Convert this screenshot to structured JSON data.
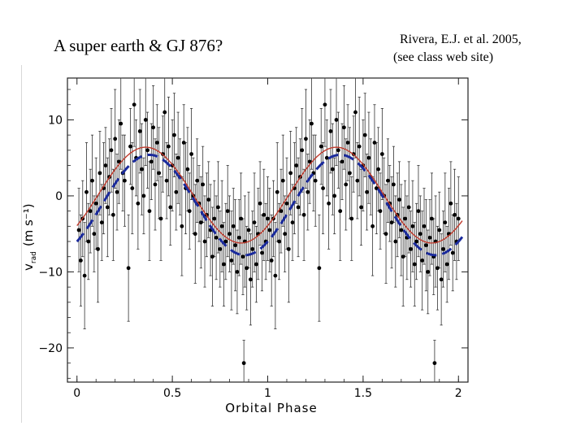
{
  "slide": {
    "title": "A super earth & GJ 876?",
    "citation_line1": "Rivera, E.J. et al. 2005,",
    "citation_line2": "(see class web site)"
  },
  "chart_data": {
    "type": "scatter",
    "xlabel": "Orbital Phase",
    "ylabel_main": "v",
    "ylabel_sub": "rad",
    "ylabel_unit": "(m s⁻¹)",
    "xlim": [
      -0.05,
      2.05
    ],
    "ylim": [
      -24.5,
      15.5
    ],
    "x_ticks": [
      0,
      0.5,
      1,
      1.5,
      2
    ],
    "x_tick_labels": [
      "0",
      "0.5",
      "1",
      "1.5",
      "2"
    ],
    "y_ticks": [
      -20,
      -10,
      0,
      10
    ],
    "y_tick_labels": [
      "−20",
      "−10",
      "0",
      "10"
    ],
    "grid": false,
    "curves": [
      {
        "style": "dashed",
        "color": "#1a2a9c",
        "amplitude": 6.6,
        "offset": -1.2,
        "phase_of_max": 0.38
      },
      {
        "style": "solid",
        "color": "#c0392b",
        "amplitude": 6.3,
        "offset": 0.1,
        "phase_of_max": 0.36
      }
    ],
    "points": [
      {
        "x": 0.01,
        "y": -4.5,
        "e": 5.5
      },
      {
        "x": 0.02,
        "y": -8.5,
        "e": 6
      },
      {
        "x": 0.03,
        "y": -3,
        "e": 5
      },
      {
        "x": 0.04,
        "y": -10.5,
        "e": 7
      },
      {
        "x": 0.05,
        "y": 0.5,
        "e": 6.5
      },
      {
        "x": 0.06,
        "y": -6,
        "e": 5
      },
      {
        "x": 0.07,
        "y": -2,
        "e": 5.5
      },
      {
        "x": 0.08,
        "y": 2,
        "e": 6
      },
      {
        "x": 0.09,
        "y": -5,
        "e": 5
      },
      {
        "x": 0.1,
        "y": -1,
        "e": 6
      },
      {
        "x": 0.11,
        "y": -7,
        "e": 7
      },
      {
        "x": 0.12,
        "y": 3,
        "e": 5.5
      },
      {
        "x": 0.13,
        "y": -3.5,
        "e": 5
      },
      {
        "x": 0.14,
        "y": 1,
        "e": 6
      },
      {
        "x": 0.15,
        "y": 4,
        "e": 5
      },
      {
        "x": 0.16,
        "y": -1.5,
        "e": 6.5
      },
      {
        "x": 0.17,
        "y": 2.5,
        "e": 5
      },
      {
        "x": 0.18,
        "y": 6,
        "e": 5.5
      },
      {
        "x": 0.19,
        "y": -2.5,
        "e": 6
      },
      {
        "x": 0.2,
        "y": 7.5,
        "e": 6.5
      },
      {
        "x": 0.21,
        "y": 0.5,
        "e": 5
      },
      {
        "x": 0.22,
        "y": 4.5,
        "e": 5.5
      },
      {
        "x": 0.23,
        "y": 9.5,
        "e": 6
      },
      {
        "x": 0.24,
        "y": 3,
        "e": 5
      },
      {
        "x": 0.25,
        "y": 2,
        "e": 6
      },
      {
        "x": 0.27,
        "y": -9.5,
        "e": 7
      },
      {
        "x": 0.28,
        "y": 6.5,
        "e": 5
      },
      {
        "x": 0.29,
        "y": 1,
        "e": 6
      },
      {
        "x": 0.3,
        "y": 12,
        "e": 5.5
      },
      {
        "x": 0.31,
        "y": 5,
        "e": 5
      },
      {
        "x": 0.32,
        "y": -1,
        "e": 6
      },
      {
        "x": 0.33,
        "y": 8.5,
        "e": 5.5
      },
      {
        "x": 0.34,
        "y": 3.5,
        "e": 6
      },
      {
        "x": 0.35,
        "y": 0,
        "e": 5
      },
      {
        "x": 0.36,
        "y": 10,
        "e": 6
      },
      {
        "x": 0.37,
        "y": 6,
        "e": 5
      },
      {
        "x": 0.38,
        "y": -2,
        "e": 6.5
      },
      {
        "x": 0.39,
        "y": 4.5,
        "e": 5
      },
      {
        "x": 0.4,
        "y": 9,
        "e": 5.5
      },
      {
        "x": 0.41,
        "y": 1.5,
        "e": 6
      },
      {
        "x": 0.42,
        "y": 7,
        "e": 5
      },
      {
        "x": 0.43,
        "y": 3,
        "e": 6
      },
      {
        "x": 0.44,
        "y": -3,
        "e": 5.5
      },
      {
        "x": 0.45,
        "y": 5.5,
        "e": 5
      },
      {
        "x": 0.46,
        "y": 11,
        "e": 6
      },
      {
        "x": 0.47,
        "y": 2,
        "e": 5
      },
      {
        "x": 0.48,
        "y": 6.5,
        "e": 6.5
      },
      {
        "x": 0.49,
        "y": -1.5,
        "e": 5
      },
      {
        "x": 0.5,
        "y": 4,
        "e": 6
      },
      {
        "x": 0.51,
        "y": 8,
        "e": 5.5
      },
      {
        "x": 0.52,
        "y": 0.5,
        "e": 5
      },
      {
        "x": 0.53,
        "y": 5,
        "e": 6
      },
      {
        "x": 0.54,
        "y": 2.5,
        "e": 5
      },
      {
        "x": 0.55,
        "y": -4,
        "e": 6.5
      },
      {
        "x": 0.56,
        "y": 7,
        "e": 5
      },
      {
        "x": 0.57,
        "y": 1,
        "e": 6
      },
      {
        "x": 0.58,
        "y": 3.5,
        "e": 5.5
      },
      {
        "x": 0.59,
        "y": -2,
        "e": 5
      },
      {
        "x": 0.6,
        "y": 5.5,
        "e": 6
      },
      {
        "x": 0.61,
        "y": 0,
        "e": 5
      },
      {
        "x": 0.62,
        "y": -5,
        "e": 6.5
      },
      {
        "x": 0.63,
        "y": 2,
        "e": 5.5
      },
      {
        "x": 0.64,
        "y": -1,
        "e": 5
      },
      {
        "x": 0.65,
        "y": -3.5,
        "e": 6
      },
      {
        "x": 0.66,
        "y": 1.5,
        "e": 5
      },
      {
        "x": 0.67,
        "y": -6,
        "e": 6
      },
      {
        "x": 0.68,
        "y": -2.5,
        "e": 5.5
      },
      {
        "x": 0.69,
        "y": -0.5,
        "e": 5
      },
      {
        "x": 0.7,
        "y": -4.5,
        "e": 6
      },
      {
        "x": 0.71,
        "y": -8,
        "e": 6.5
      },
      {
        "x": 0.72,
        "y": -3,
        "e": 5
      },
      {
        "x": 0.73,
        "y": -5.5,
        "e": 5.5
      },
      {
        "x": 0.74,
        "y": -1.5,
        "e": 6
      },
      {
        "x": 0.75,
        "y": -7,
        "e": 5
      },
      {
        "x": 0.76,
        "y": -4,
        "e": 6
      },
      {
        "x": 0.77,
        "y": -9,
        "e": 5.5
      },
      {
        "x": 0.78,
        "y": -6,
        "e": 5
      },
      {
        "x": 0.79,
        "y": -2,
        "e": 6
      },
      {
        "x": 0.8,
        "y": -5,
        "e": 5
      },
      {
        "x": 0.81,
        "y": -8.5,
        "e": 6.5
      },
      {
        "x": 0.82,
        "y": -4,
        "e": 5
      },
      {
        "x": 0.83,
        "y": -6.5,
        "e": 6
      },
      {
        "x": 0.84,
        "y": -10,
        "e": 5.5
      },
      {
        "x": 0.85,
        "y": -5.5,
        "e": 5
      },
      {
        "x": 0.86,
        "y": -3,
        "e": 6
      },
      {
        "x": 0.87,
        "y": -8,
        "e": 5
      },
      {
        "x": 0.875,
        "y": -22,
        "e": 3
      },
      {
        "x": 0.88,
        "y": -6,
        "e": 6
      },
      {
        "x": 0.89,
        "y": -9.5,
        "e": 5.5
      },
      {
        "x": 0.9,
        "y": -4.5,
        "e": 5
      },
      {
        "x": 0.91,
        "y": -11,
        "e": 6
      },
      {
        "x": 0.92,
        "y": -7,
        "e": 5
      },
      {
        "x": 0.93,
        "y": -3.5,
        "e": 6.5
      },
      {
        "x": 0.94,
        "y": -9,
        "e": 5
      },
      {
        "x": 0.95,
        "y": -5,
        "e": 6
      },
      {
        "x": 0.96,
        "y": -1,
        "e": 5.5
      },
      {
        "x": 0.97,
        "y": -7.5,
        "e": 5
      },
      {
        "x": 0.98,
        "y": -2.5,
        "e": 6
      },
      {
        "x": 0.99,
        "y": -6,
        "e": 5
      },
      {
        "x": 1.0,
        "y": -3,
        "e": 5.5
      },
      {
        "x": 1.01,
        "y": -4.5,
        "e": 5.5
      },
      {
        "x": 1.02,
        "y": -8.5,
        "e": 6
      },
      {
        "x": 1.03,
        "y": -3,
        "e": 5
      },
      {
        "x": 1.04,
        "y": -10.5,
        "e": 7
      },
      {
        "x": 1.05,
        "y": 0.5,
        "e": 6.5
      },
      {
        "x": 1.06,
        "y": -6,
        "e": 5
      },
      {
        "x": 1.07,
        "y": -2,
        "e": 5.5
      },
      {
        "x": 1.08,
        "y": 2,
        "e": 6
      },
      {
        "x": 1.09,
        "y": -5,
        "e": 5
      },
      {
        "x": 1.1,
        "y": -1,
        "e": 6
      },
      {
        "x": 1.11,
        "y": -7,
        "e": 7
      },
      {
        "x": 1.12,
        "y": 3,
        "e": 5.5
      },
      {
        "x": 1.13,
        "y": -3.5,
        "e": 5
      },
      {
        "x": 1.14,
        "y": 1,
        "e": 6
      },
      {
        "x": 1.15,
        "y": 4,
        "e": 5
      },
      {
        "x": 1.16,
        "y": -1.5,
        "e": 6.5
      },
      {
        "x": 1.17,
        "y": 2.5,
        "e": 5
      },
      {
        "x": 1.18,
        "y": 6,
        "e": 5.5
      },
      {
        "x": 1.19,
        "y": -2.5,
        "e": 6
      },
      {
        "x": 1.2,
        "y": 7.5,
        "e": 6.5
      },
      {
        "x": 1.21,
        "y": 0.5,
        "e": 5
      },
      {
        "x": 1.22,
        "y": 4.5,
        "e": 5.5
      },
      {
        "x": 1.23,
        "y": 9.5,
        "e": 6
      },
      {
        "x": 1.24,
        "y": 3,
        "e": 5
      },
      {
        "x": 1.25,
        "y": 2,
        "e": 6
      },
      {
        "x": 1.27,
        "y": -9.5,
        "e": 7
      },
      {
        "x": 1.28,
        "y": 6.5,
        "e": 5
      },
      {
        "x": 1.29,
        "y": 1,
        "e": 6
      },
      {
        "x": 1.3,
        "y": 12,
        "e": 5.5
      },
      {
        "x": 1.31,
        "y": 5,
        "e": 5
      },
      {
        "x": 1.32,
        "y": -1,
        "e": 6
      },
      {
        "x": 1.33,
        "y": 8.5,
        "e": 5.5
      },
      {
        "x": 1.34,
        "y": 3.5,
        "e": 6
      },
      {
        "x": 1.35,
        "y": 0,
        "e": 5
      },
      {
        "x": 1.36,
        "y": 10,
        "e": 6
      },
      {
        "x": 1.37,
        "y": 6,
        "e": 5
      },
      {
        "x": 1.38,
        "y": -2,
        "e": 6.5
      },
      {
        "x": 1.39,
        "y": 4.5,
        "e": 5
      },
      {
        "x": 1.4,
        "y": 9,
        "e": 5.5
      },
      {
        "x": 1.41,
        "y": 1.5,
        "e": 6
      },
      {
        "x": 1.42,
        "y": 7,
        "e": 5
      },
      {
        "x": 1.43,
        "y": 3,
        "e": 6
      },
      {
        "x": 1.44,
        "y": -3,
        "e": 5.5
      },
      {
        "x": 1.45,
        "y": 5.5,
        "e": 5
      },
      {
        "x": 1.46,
        "y": 11,
        "e": 6
      },
      {
        "x": 1.47,
        "y": 2,
        "e": 5
      },
      {
        "x": 1.48,
        "y": 6.5,
        "e": 6.5
      },
      {
        "x": 1.49,
        "y": -1.5,
        "e": 5
      },
      {
        "x": 1.5,
        "y": 4,
        "e": 6
      },
      {
        "x": 1.51,
        "y": 8,
        "e": 5.5
      },
      {
        "x": 1.52,
        "y": 0.5,
        "e": 5
      },
      {
        "x": 1.53,
        "y": 5,
        "e": 6
      },
      {
        "x": 1.54,
        "y": 2.5,
        "e": 5
      },
      {
        "x": 1.55,
        "y": -4,
        "e": 6.5
      },
      {
        "x": 1.56,
        "y": 7,
        "e": 5
      },
      {
        "x": 1.57,
        "y": 1,
        "e": 6
      },
      {
        "x": 1.58,
        "y": 3.5,
        "e": 5.5
      },
      {
        "x": 1.59,
        "y": -2,
        "e": 5
      },
      {
        "x": 1.6,
        "y": 5.5,
        "e": 6
      },
      {
        "x": 1.61,
        "y": 0,
        "e": 5
      },
      {
        "x": 1.62,
        "y": -5,
        "e": 6.5
      },
      {
        "x": 1.63,
        "y": 2,
        "e": 5.5
      },
      {
        "x": 1.64,
        "y": -1,
        "e": 5
      },
      {
        "x": 1.65,
        "y": -3.5,
        "e": 6
      },
      {
        "x": 1.66,
        "y": 1.5,
        "e": 5
      },
      {
        "x": 1.67,
        "y": -6,
        "e": 6
      },
      {
        "x": 1.68,
        "y": -2.5,
        "e": 5.5
      },
      {
        "x": 1.69,
        "y": -0.5,
        "e": 5
      },
      {
        "x": 1.7,
        "y": -4.5,
        "e": 6
      },
      {
        "x": 1.71,
        "y": -8,
        "e": 6.5
      },
      {
        "x": 1.72,
        "y": -3,
        "e": 5
      },
      {
        "x": 1.73,
        "y": -5.5,
        "e": 5.5
      },
      {
        "x": 1.74,
        "y": -1.5,
        "e": 6
      },
      {
        "x": 1.75,
        "y": -7,
        "e": 5
      },
      {
        "x": 1.76,
        "y": -4,
        "e": 6
      },
      {
        "x": 1.77,
        "y": -9,
        "e": 5.5
      },
      {
        "x": 1.78,
        "y": -6,
        "e": 5
      },
      {
        "x": 1.79,
        "y": -2,
        "e": 6
      },
      {
        "x": 1.8,
        "y": -5,
        "e": 5
      },
      {
        "x": 1.81,
        "y": -8.5,
        "e": 6.5
      },
      {
        "x": 1.82,
        "y": -4,
        "e": 5
      },
      {
        "x": 1.83,
        "y": -6.5,
        "e": 6
      },
      {
        "x": 1.84,
        "y": -10,
        "e": 5.5
      },
      {
        "x": 1.85,
        "y": -5.5,
        "e": 5
      },
      {
        "x": 1.86,
        "y": -3,
        "e": 6
      },
      {
        "x": 1.87,
        "y": -8,
        "e": 5
      },
      {
        "x": 1.875,
        "y": -22,
        "e": 3
      },
      {
        "x": 1.88,
        "y": -6,
        "e": 6
      },
      {
        "x": 1.89,
        "y": -9.5,
        "e": 5.5
      },
      {
        "x": 1.9,
        "y": -4.5,
        "e": 5
      },
      {
        "x": 1.91,
        "y": -11,
        "e": 6
      },
      {
        "x": 1.92,
        "y": -7,
        "e": 5
      },
      {
        "x": 1.93,
        "y": -3.5,
        "e": 6.5
      },
      {
        "x": 1.94,
        "y": -9,
        "e": 5
      },
      {
        "x": 1.95,
        "y": -5,
        "e": 6
      },
      {
        "x": 1.96,
        "y": -1,
        "e": 5.5
      },
      {
        "x": 1.97,
        "y": -7.5,
        "e": 5
      },
      {
        "x": 1.98,
        "y": -2.5,
        "e": 6
      },
      {
        "x": 1.99,
        "y": -6,
        "e": 5
      },
      {
        "x": 2.0,
        "y": -3,
        "e": 5.5
      }
    ]
  }
}
